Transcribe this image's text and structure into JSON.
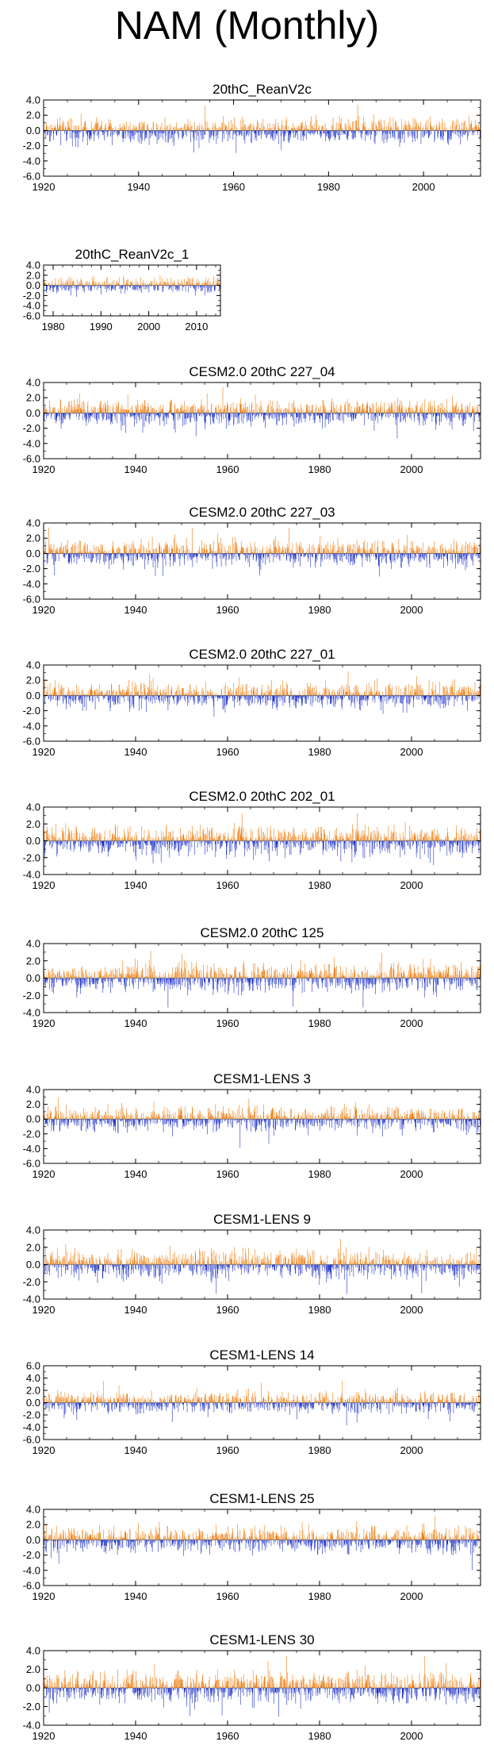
{
  "title": "NAM (Monthly)",
  "colors": {
    "positive": "#f07d10",
    "negative": "#1f32c8",
    "axis": "#000000"
  },
  "chart_data": [
    {
      "type": "bar",
      "title": "20thC_ReanV2c",
      "x_range": [
        1920,
        2012
      ],
      "xticks": [
        1920,
        1940,
        1960,
        1980,
        2000
      ],
      "ylim": [
        -6.0,
        4.0
      ],
      "yticks": [
        "4.0",
        "2.0",
        "0.0",
        "-2.0",
        "-4.0",
        "-6.0"
      ],
      "xlabel": "",
      "ylabel": "",
      "series": [
        {
          "name": "positive",
          "color": "#f07d10"
        },
        {
          "name": "negative",
          "color": "#1f32c8"
        }
      ]
    },
    {
      "type": "bar",
      "title": "20thC_ReanV2c_1",
      "x_range": [
        1978,
        2015
      ],
      "xticks": [
        1980,
        1990,
        2000,
        2010
      ],
      "ylim": [
        -6.0,
        4.0
      ],
      "yticks": [
        "4.0",
        "2.0",
        "0.0",
        "-2.0",
        "-4.0",
        "-6.0"
      ],
      "xlabel": "",
      "ylabel": "",
      "series": [
        {
          "name": "positive",
          "color": "#f07d10"
        },
        {
          "name": "negative",
          "color": "#1f32c8"
        }
      ]
    },
    {
      "type": "bar",
      "title": "CESM2.0 20thC 227_04",
      "x_range": [
        1920,
        2015
      ],
      "xticks": [
        1920,
        1940,
        1960,
        1980,
        2000
      ],
      "ylim": [
        -6.0,
        4.0
      ],
      "yticks": [
        "4.0",
        "2.0",
        "0.0",
        "-2.0",
        "-4.0",
        "-6.0"
      ],
      "xlabel": "",
      "ylabel": "",
      "series": [
        {
          "name": "positive",
          "color": "#f07d10"
        },
        {
          "name": "negative",
          "color": "#1f32c8"
        }
      ]
    },
    {
      "type": "bar",
      "title": "CESM2.0 20thC 227_03",
      "x_range": [
        1920,
        2015
      ],
      "xticks": [
        1920,
        1940,
        1960,
        1980,
        2000
      ],
      "ylim": [
        -6.0,
        4.0
      ],
      "yticks": [
        "4.0",
        "2.0",
        "0.0",
        "-2.0",
        "-4.0",
        "-6.0"
      ],
      "xlabel": "",
      "ylabel": "",
      "series": [
        {
          "name": "positive",
          "color": "#f07d10"
        },
        {
          "name": "negative",
          "color": "#1f32c8"
        }
      ]
    },
    {
      "type": "bar",
      "title": "CESM2.0 20thC 227_01",
      "x_range": [
        1920,
        2015
      ],
      "xticks": [
        1920,
        1940,
        1960,
        1980,
        2000
      ],
      "ylim": [
        -6.0,
        4.0
      ],
      "yticks": [
        "4.0",
        "2.0",
        "0.0",
        "-2.0",
        "-4.0",
        "-6.0"
      ],
      "xlabel": "",
      "ylabel": "",
      "series": [
        {
          "name": "positive",
          "color": "#f07d10"
        },
        {
          "name": "negative",
          "color": "#1f32c8"
        }
      ]
    },
    {
      "type": "bar",
      "title": "CESM2.0 20thC 202_01",
      "x_range": [
        1920,
        2015
      ],
      "xticks": [
        1920,
        1940,
        1960,
        1980,
        2000
      ],
      "ylim": [
        -4.0,
        4.0
      ],
      "yticks": [
        "4.0",
        "2.0",
        "0.0",
        "-2.0",
        "-4.0"
      ],
      "xlabel": "",
      "ylabel": "",
      "series": [
        {
          "name": "positive",
          "color": "#f07d10"
        },
        {
          "name": "negative",
          "color": "#1f32c8"
        }
      ]
    },
    {
      "type": "bar",
      "title": "CESM2.0 20thC 125",
      "x_range": [
        1920,
        2015
      ],
      "xticks": [
        1920,
        1940,
        1960,
        1980,
        2000
      ],
      "ylim": [
        -4.0,
        4.0
      ],
      "yticks": [
        "4.0",
        "2.0",
        "0.0",
        "-2.0",
        "-4.0"
      ],
      "xlabel": "",
      "ylabel": "",
      "series": [
        {
          "name": "positive",
          "color": "#f07d10"
        },
        {
          "name": "negative",
          "color": "#1f32c8"
        }
      ]
    },
    {
      "type": "bar",
      "title": "CESM1-LENS 3",
      "x_range": [
        1920,
        2015
      ],
      "xticks": [
        1920,
        1940,
        1960,
        1980,
        2000
      ],
      "ylim": [
        -6.0,
        4.0
      ],
      "yticks": [
        "4.0",
        "2.0",
        "0.0",
        "-2.0",
        "-4.0",
        "-6.0"
      ],
      "xlabel": "",
      "ylabel": "",
      "series": [
        {
          "name": "positive",
          "color": "#f07d10"
        },
        {
          "name": "negative",
          "color": "#1f32c8"
        }
      ]
    },
    {
      "type": "bar",
      "title": "CESM1-LENS 9",
      "x_range": [
        1920,
        2015
      ],
      "xticks": [
        1920,
        1940,
        1960,
        1980,
        2000
      ],
      "ylim": [
        -4.0,
        4.0
      ],
      "yticks": [
        "4.0",
        "2.0",
        "0.0",
        "-2.0",
        "-4.0"
      ],
      "xlabel": "",
      "ylabel": "",
      "series": [
        {
          "name": "positive",
          "color": "#f07d10"
        },
        {
          "name": "negative",
          "color": "#1f32c8"
        }
      ]
    },
    {
      "type": "bar",
      "title": "CESM1-LENS 14",
      "x_range": [
        1920,
        2015
      ],
      "xticks": [
        1920,
        1940,
        1960,
        1980,
        2000
      ],
      "ylim": [
        -6.0,
        6.0
      ],
      "yticks": [
        "6.0",
        "4.0",
        "2.0",
        "0.0",
        "-2.0",
        "-4.0",
        "-6.0"
      ],
      "xlabel": "",
      "ylabel": "",
      "series": [
        {
          "name": "positive",
          "color": "#f07d10"
        },
        {
          "name": "negative",
          "color": "#1f32c8"
        }
      ]
    },
    {
      "type": "bar",
      "title": "CESM1-LENS 25",
      "x_range": [
        1920,
        2015
      ],
      "xticks": [
        1920,
        1940,
        1960,
        1980,
        2000
      ],
      "ylim": [
        -6.0,
        4.0
      ],
      "yticks": [
        "4.0",
        "2.0",
        "0.0",
        "-2.0",
        "-4.0",
        "-6.0"
      ],
      "xlabel": "",
      "ylabel": "",
      "series": [
        {
          "name": "positive",
          "color": "#f07d10"
        },
        {
          "name": "negative",
          "color": "#1f32c8"
        }
      ]
    },
    {
      "type": "bar",
      "title": "CESM1-LENS 30",
      "x_range": [
        1920,
        2015
      ],
      "xticks": [
        1920,
        1940,
        1960,
        1980,
        2000
      ],
      "ylim": [
        -4.0,
        4.0
      ],
      "yticks": [
        "4.0",
        "2.0",
        "0.0",
        "-2.0",
        "-4.0"
      ],
      "xlabel": "",
      "ylabel": "",
      "series": [
        {
          "name": "positive",
          "color": "#f07d10"
        },
        {
          "name": "negative",
          "color": "#1f32c8"
        }
      ]
    }
  ]
}
